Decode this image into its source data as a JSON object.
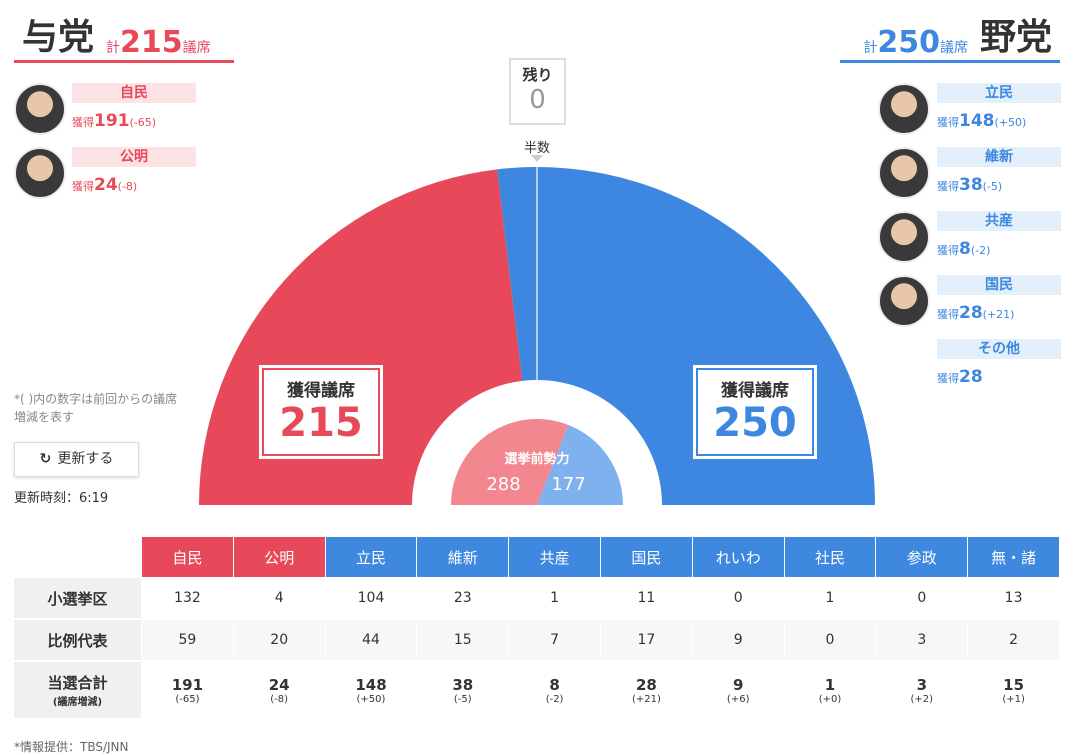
{
  "ruling": {
    "label": "与党",
    "total": 215,
    "parties": [
      {
        "name": "自民",
        "seats": 191,
        "change": "(-65)"
      },
      {
        "name": "公明",
        "seats": 24,
        "change": "(-8)"
      }
    ]
  },
  "opposition": {
    "label": "野党",
    "total": 250,
    "parties": [
      {
        "name": "立民",
        "seats": 148,
        "change": "(+50)"
      },
      {
        "name": "維新",
        "seats": 38,
        "change": "(-5)"
      },
      {
        "name": "共産",
        "seats": 8,
        "change": "(-2)"
      },
      {
        "name": "国民",
        "seats": 28,
        "change": "(+21)"
      },
      {
        "name": "その他",
        "seats": 28
      }
    ]
  },
  "total_prefix": "計",
  "total_suffix": "議席",
  "gain_label": "獲得",
  "remaining": {
    "label": "残り",
    "value": 0
  },
  "majority_label": "半数",
  "seat_box_label": "獲得議席",
  "pre_election": {
    "label": "選挙前勢力",
    "ruling": 288,
    "opposition": 177
  },
  "note": "*( )内の数字は前回からの議席増減を表す",
  "update_button": "更新する",
  "update_time": "更新時刻：6:19",
  "table": {
    "columns": [
      "自民",
      "公明",
      "立民",
      "維新",
      "共産",
      "国民",
      "れいわ",
      "社民",
      "参政",
      "無・諸"
    ],
    "rows": [
      {
        "label": "小選挙区",
        "values": [
          132,
          4,
          104,
          23,
          1,
          11,
          0,
          1,
          0,
          13
        ]
      },
      {
        "label": "比例代表",
        "values": [
          59,
          20,
          44,
          15,
          7,
          17,
          9,
          0,
          3,
          2
        ]
      },
      {
        "label": "当選合計",
        "sublabel": "(議席増減)",
        "values": [
          191,
          24,
          148,
          38,
          8,
          28,
          9,
          1,
          3,
          15
        ],
        "changes": [
          "(-65)",
          "(-8)",
          "(+50)",
          "(-5)",
          "(-2)",
          "(+21)",
          "(+6)",
          "(+0)",
          "(+2)",
          "(+1)"
        ]
      }
    ]
  },
  "source": "*情報提供：TBS/JNN"
}
